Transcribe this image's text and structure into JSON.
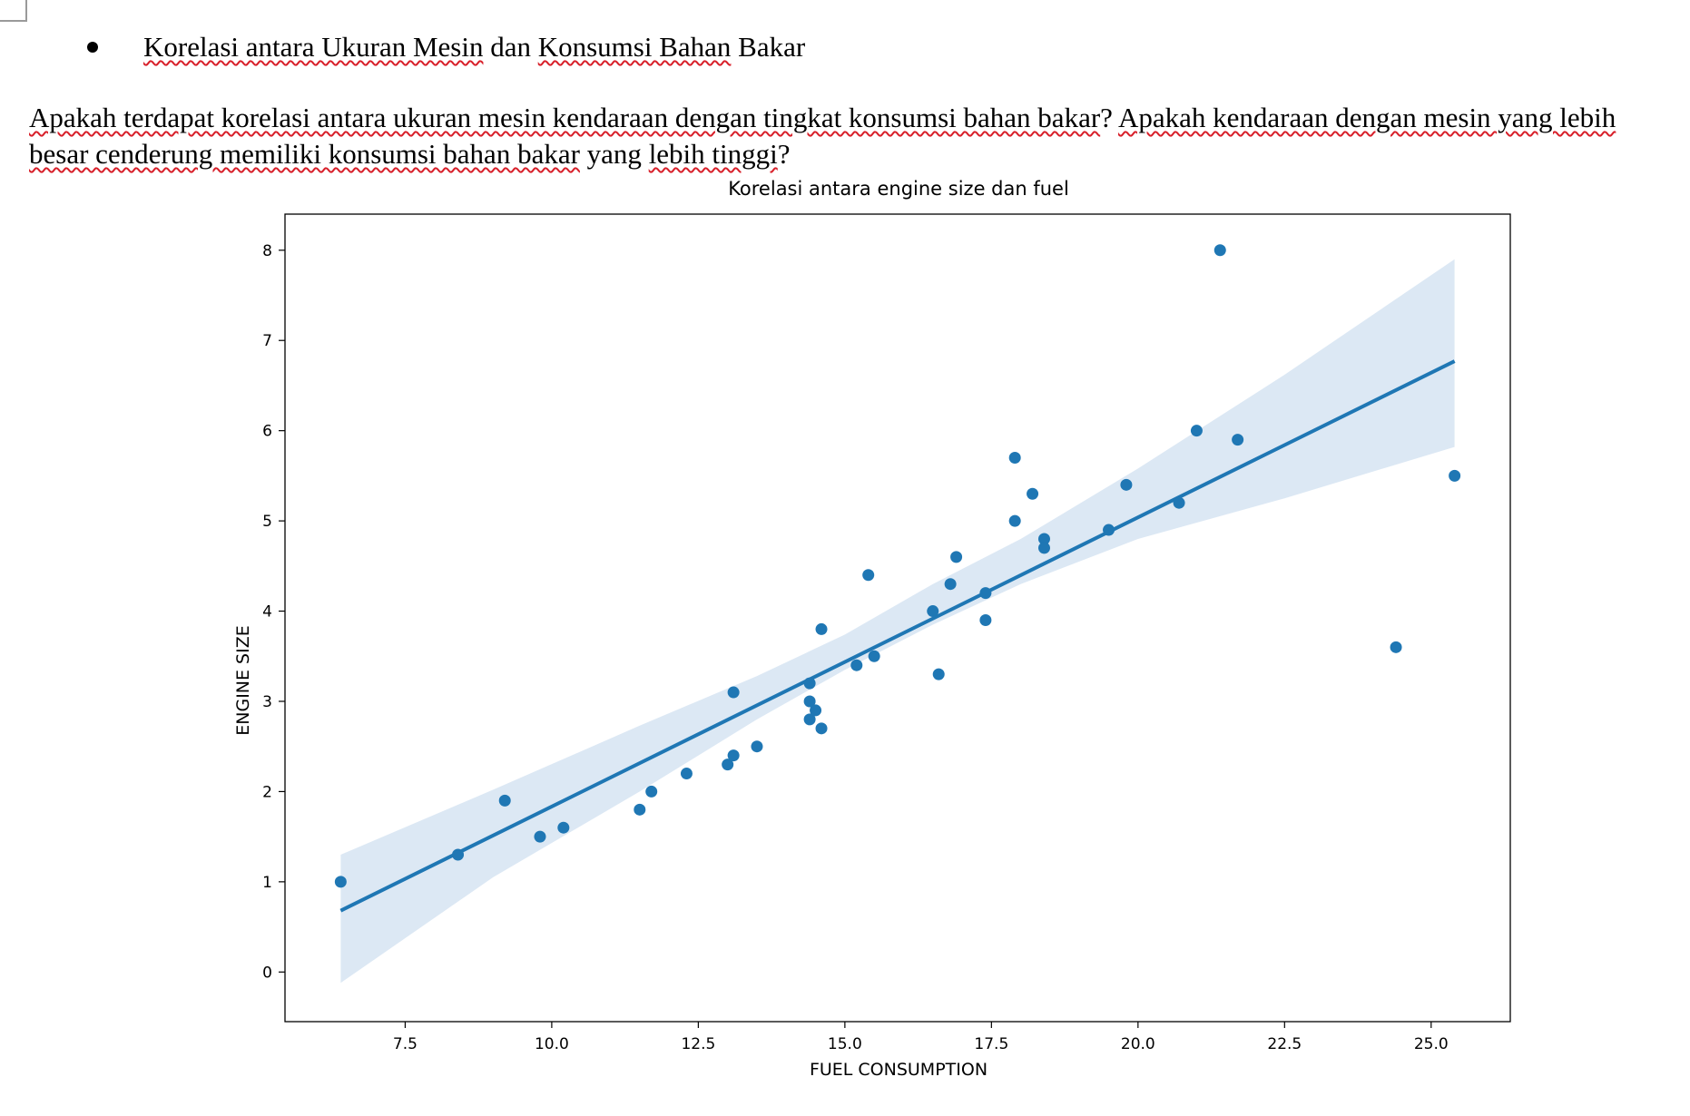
{
  "document": {
    "bullet_heading_parts": [
      {
        "text": "Korelasi antara Ukuran Mesin",
        "spell": true
      },
      {
        "text": " dan ",
        "spell": false
      },
      {
        "text": "Konsumsi Bahan",
        "spell": true
      },
      {
        "text": " Bakar",
        "spell": false
      }
    ],
    "paragraph_parts": [
      {
        "text": "Apakah terdapat korelasi antara ukuran mesin kendaraan dengan tingkat konsumsi bahan bakar",
        "spell": true
      },
      {
        "text": "? ",
        "spell": false
      },
      {
        "text": "Apakah kendaraan dengan mesin yang lebih besar cenderung memiliki konsumsi bahan bakar",
        "spell": true
      },
      {
        "text": " yang ",
        "spell": false
      },
      {
        "text": "lebih tinggi",
        "spell": true
      },
      {
        "text": "?",
        "spell": false
      }
    ]
  },
  "chart_data": {
    "type": "scatter",
    "title": "Korelasi antara engine size dan fuel",
    "xlabel": "FUEL CONSUMPTION",
    "ylabel": "ENGINE SIZE",
    "xlim": [
      5.45,
      26.35
    ],
    "ylim": [
      -0.55,
      8.4
    ],
    "xticks": [
      7.5,
      10.0,
      12.5,
      15.0,
      17.5,
      20.0,
      22.5,
      25.0
    ],
    "xtick_labels": [
      "7.5",
      "10.0",
      "12.5",
      "15.0",
      "17.5",
      "20.0",
      "22.5",
      "25.0"
    ],
    "yticks": [
      0,
      1,
      2,
      3,
      4,
      5,
      6,
      7,
      8
    ],
    "ytick_labels": [
      "0",
      "1",
      "2",
      "3",
      "4",
      "5",
      "6",
      "7",
      "8"
    ],
    "grid": false,
    "point_color": "#1f77b4",
    "line_color": "#1f77b4",
    "band_color": "#dce8f4",
    "points": [
      {
        "x": 6.4,
        "y": 1.0
      },
      {
        "x": 8.4,
        "y": 1.3
      },
      {
        "x": 9.2,
        "y": 1.9
      },
      {
        "x": 9.8,
        "y": 1.5
      },
      {
        "x": 10.2,
        "y": 1.6
      },
      {
        "x": 11.5,
        "y": 1.8
      },
      {
        "x": 11.7,
        "y": 2.0
      },
      {
        "x": 12.3,
        "y": 2.2
      },
      {
        "x": 13.0,
        "y": 2.3
      },
      {
        "x": 13.1,
        "y": 2.4
      },
      {
        "x": 13.1,
        "y": 3.1
      },
      {
        "x": 13.5,
        "y": 2.5
      },
      {
        "x": 14.4,
        "y": 3.0
      },
      {
        "x": 14.4,
        "y": 2.8
      },
      {
        "x": 14.4,
        "y": 3.2
      },
      {
        "x": 14.5,
        "y": 2.9
      },
      {
        "x": 14.6,
        "y": 2.7
      },
      {
        "x": 14.6,
        "y": 3.8
      },
      {
        "x": 15.2,
        "y": 3.4
      },
      {
        "x": 15.4,
        "y": 4.4
      },
      {
        "x": 15.5,
        "y": 3.5
      },
      {
        "x": 16.5,
        "y": 4.0
      },
      {
        "x": 16.6,
        "y": 3.3
      },
      {
        "x": 16.8,
        "y": 4.3
      },
      {
        "x": 16.9,
        "y": 4.6
      },
      {
        "x": 17.4,
        "y": 4.2
      },
      {
        "x": 17.4,
        "y": 3.9
      },
      {
        "x": 17.9,
        "y": 5.0
      },
      {
        "x": 17.9,
        "y": 5.7
      },
      {
        "x": 18.2,
        "y": 5.3
      },
      {
        "x": 18.4,
        "y": 4.8
      },
      {
        "x": 18.4,
        "y": 4.7
      },
      {
        "x": 19.5,
        "y": 4.9
      },
      {
        "x": 19.8,
        "y": 5.4
      },
      {
        "x": 20.7,
        "y": 5.2
      },
      {
        "x": 21.0,
        "y": 6.0
      },
      {
        "x": 21.4,
        "y": 8.0
      },
      {
        "x": 21.7,
        "y": 5.9
      },
      {
        "x": 24.4,
        "y": 3.6
      },
      {
        "x": 25.4,
        "y": 5.5
      }
    ],
    "regression": {
      "x": [
        6.4,
        25.4
      ],
      "y": [
        0.68,
        6.77
      ]
    },
    "confidence_band": {
      "x": [
        6.4,
        9.0,
        11.5,
        13.5,
        15.0,
        16.5,
        18.0,
        20.0,
        22.5,
        25.4
      ],
      "lower": [
        -0.12,
        1.05,
        2.0,
        2.8,
        3.35,
        3.85,
        4.3,
        4.8,
        5.25,
        5.82
      ],
      "upper": [
        1.3,
        2.02,
        2.73,
        3.28,
        3.74,
        4.3,
        4.8,
        5.58,
        6.62,
        7.9
      ]
    }
  }
}
